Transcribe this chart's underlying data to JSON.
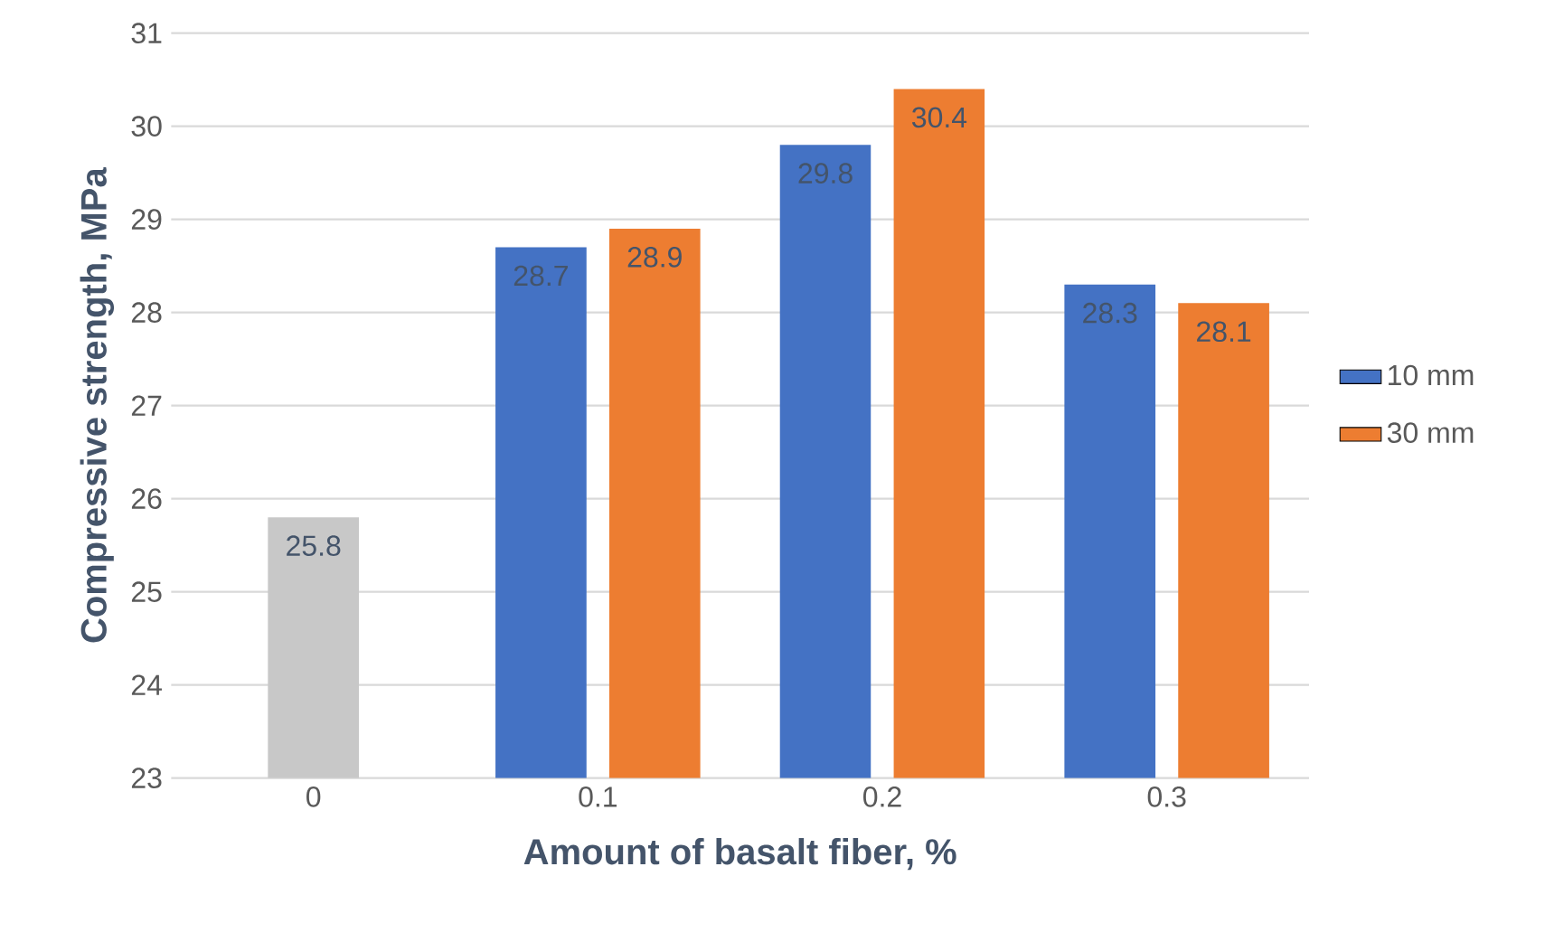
{
  "chart_data": {
    "type": "bar",
    "xlabel": "Amount of basalt fiber, %",
    "ylabel": "Compressive strength, MPa",
    "categories": [
      "0",
      "0.1",
      "0.2",
      "0.3"
    ],
    "series": [
      {
        "name": "10 mm",
        "color": "#4472c4",
        "values": [
          null,
          28.7,
          29.8,
          28.3
        ]
      },
      {
        "name": "30 mm",
        "color": "#ed7d31",
        "values": [
          null,
          28.9,
          30.4,
          28.1
        ]
      },
      {
        "color": "#c8c8c8",
        "values": [
          25.8,
          null,
          null,
          null
        ]
      }
    ],
    "ylim": [
      23,
      31
    ],
    "yticks": [
      23,
      24,
      25,
      26,
      27,
      28,
      29,
      30,
      31
    ],
    "grid": "y",
    "legend": "right",
    "data_labels": true
  }
}
